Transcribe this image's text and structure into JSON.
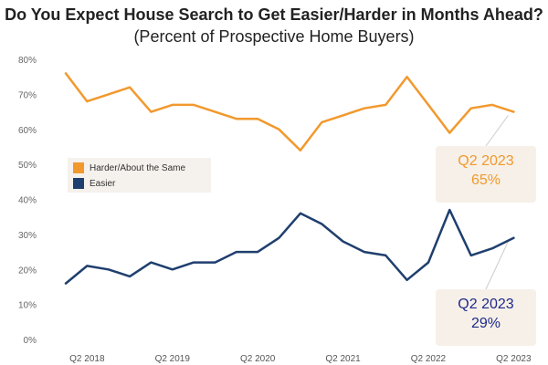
{
  "title": "Do You Expect House Search to Get Easier/Harder in Months Ahead?",
  "subtitle": "(Percent of Prospective Home Buyers)",
  "colors": {
    "orange": "#f2992e",
    "navy": "#1f3f6e",
    "callout_text_navy": "#1f2a8c"
  },
  "legend": [
    {
      "label": "Harder/About the Same",
      "color": "#f2992e"
    },
    {
      "label": "Easier",
      "color": "#1f3f6e"
    }
  ],
  "callouts": [
    {
      "period": "Q2 2023",
      "value": "65%"
    },
    {
      "period": "Q2 2023",
      "value": "29%"
    }
  ],
  "chart_data": {
    "type": "line",
    "title": "Do You Expect House Search to Get Easier/Harder in Months Ahead?",
    "subtitle": "(Percent of Prospective Home Buyers)",
    "x": [
      "Q1 2018",
      "Q2 2018",
      "Q3 2018",
      "Q4 2018",
      "Q1 2019",
      "Q2 2019",
      "Q3 2019",
      "Q4 2019",
      "Q1 2020",
      "Q2 2020",
      "Q3 2020",
      "Q4 2020",
      "Q1 2021",
      "Q2 2021",
      "Q3 2021",
      "Q4 2021",
      "Q1 2022",
      "Q2 2022",
      "Q3 2022",
      "Q4 2022",
      "Q1 2023",
      "Q2 2023"
    ],
    "x_tick_labels": [
      "Q2 2018",
      "Q2 2019",
      "Q2 2020",
      "Q2 2021",
      "Q2 2022",
      "Q2 2023"
    ],
    "x_tick_indices": [
      1,
      5,
      9,
      13,
      17,
      21
    ],
    "y_ticks": [
      "0%",
      "10%",
      "20%",
      "30%",
      "40%",
      "50%",
      "60%",
      "70%",
      "80%"
    ],
    "ylim": [
      0,
      80
    ],
    "grid": false,
    "legend_position": "left-middle",
    "series": [
      {
        "name": "Harder/About the Same",
        "values": [
          76,
          68,
          70,
          72,
          65,
          67,
          67,
          65,
          63,
          63,
          60,
          54,
          62,
          64,
          66,
          67,
          75,
          67,
          59,
          66,
          67,
          65
        ]
      },
      {
        "name": "Easier",
        "values": [
          16,
          21,
          20,
          18,
          22,
          20,
          22,
          22,
          25,
          25,
          29,
          36,
          33,
          28,
          25,
          24,
          17,
          22,
          37,
          24,
          26,
          29
        ]
      }
    ]
  }
}
